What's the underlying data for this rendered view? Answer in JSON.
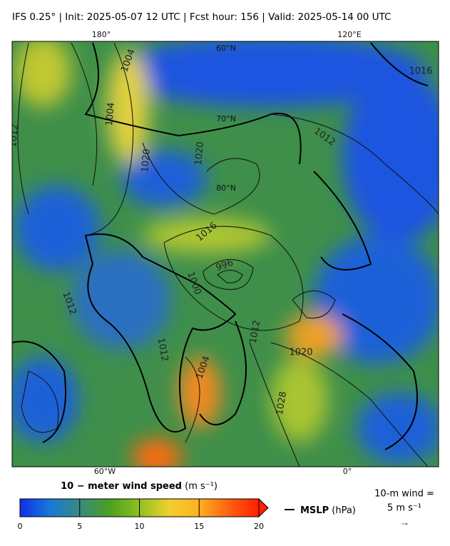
{
  "header": {
    "title": "IFS 0.25°  |  Init: 2025-05-07 12 UTC  |  Fcst hour: 156  |  Valid: 2025-05-14 00 UTC"
  },
  "map": {
    "graticule_labels": [
      "180°",
      "120°E",
      "60°N",
      "70°N",
      "80°N",
      "60°W",
      "0°"
    ],
    "contour_labels": [
      "1004",
      "1004",
      "1012",
      "1020",
      "1020",
      "1012",
      "1016",
      "996",
      "1000",
      "1012",
      "1012",
      "1012",
      "1020",
      "1004",
      "1028",
      "1016"
    ]
  },
  "colorbar": {
    "label": "10 − meter wind speed",
    "unit": "(m s⁻¹)",
    "lim": [
      0,
      20
    ],
    "ticks": [
      0,
      5,
      10,
      15,
      20
    ],
    "colors": [
      "#1030e8",
      "#1878d8",
      "#3a8a80",
      "#4aa020",
      "#90c020",
      "#f0d030",
      "#ffb020",
      "#ff6010",
      "#ff2000"
    ]
  },
  "legend": {
    "mslp": "MSLP",
    "mslp_unit": "(hPa)",
    "wind_key": "10-m wind =",
    "wind_key_value": "5 m s⁻¹"
  }
}
